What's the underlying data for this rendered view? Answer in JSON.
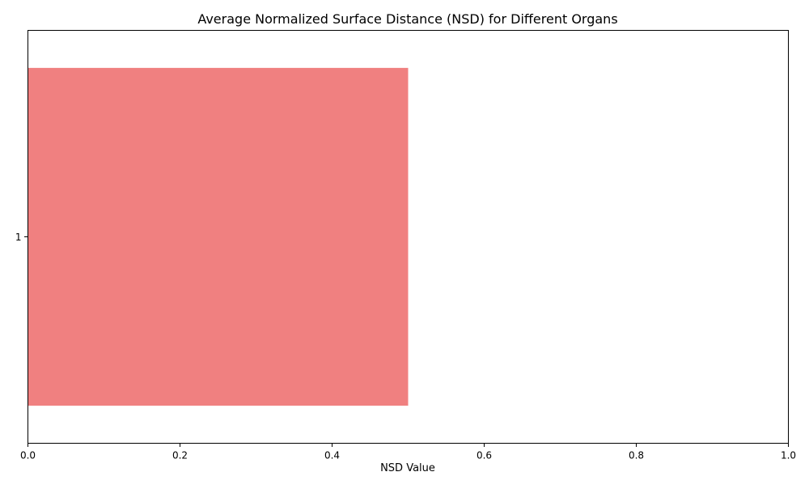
{
  "chart_data": {
    "type": "bar",
    "orientation": "horizontal",
    "title": "Average Normalized Surface Distance (NSD) for Different Organs",
    "xlabel": "NSD Value",
    "ylabel": "",
    "categories": [
      "1"
    ],
    "values": [
      0.5
    ],
    "xlim": [
      0,
      1
    ],
    "xticks": [
      "0.0",
      "0.2",
      "0.4",
      "0.6",
      "0.8",
      "1.0"
    ],
    "grid": false,
    "legend": "none",
    "colors": {
      "bar": "#f08080",
      "axis": "#000000"
    }
  }
}
